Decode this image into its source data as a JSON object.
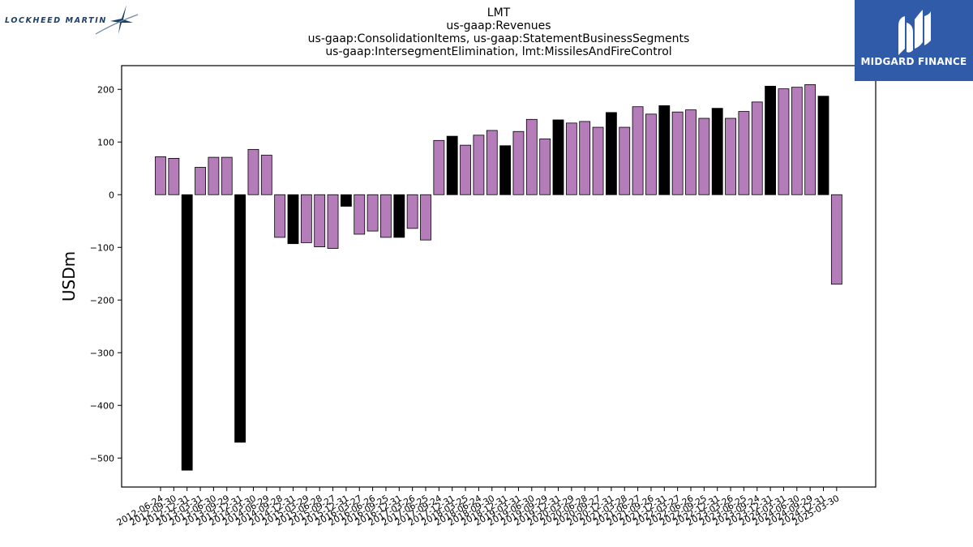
{
  "logos": {
    "left_text": "LOCKHEED MARTIN",
    "left_icon": "star-swoosh-icon",
    "right_text": "MIDGARD FINANCE",
    "right_icon": "midgard-monogram-icon",
    "right_bg": "#2f5ba8"
  },
  "chart_data": {
    "type": "bar",
    "title_lines": [
      "LMT",
      "us-gaap:Revenues",
      "us-gaap:ConsolidationItems, us-gaap:StatementBusinessSegments",
      "us-gaap:IntersegmentElimination, lmt:MissilesAndFireControl"
    ],
    "xlabel": "",
    "ylabel": "USDm",
    "ylim": [
      -555,
      245
    ],
    "yticks": [
      200,
      100,
      0,
      -100,
      -200,
      -300,
      -400,
      -500
    ],
    "grid": false,
    "colors": {
      "quarter": "#b57cba",
      "annual": "#000000",
      "edge": "#000000"
    },
    "categories": [
      "2012-06-24",
      "2012-09-30",
      "2012-12-31",
      "2013-03-31",
      "2013-06-30",
      "2013-09-29",
      "2013-12-31",
      "2014-03-30",
      "2014-06-29",
      "2014-09-28",
      "2014-12-31",
      "2015-03-29",
      "2015-06-28",
      "2015-09-27",
      "2015-12-31",
      "2016-03-27",
      "2016-06-26",
      "2016-09-25",
      "2016-12-31",
      "2017-03-26",
      "2017-06-25",
      "2017-09-24",
      "2017-12-31",
      "2018-03-25",
      "2018-06-24",
      "2018-09-30",
      "2018-12-31",
      "2019-03-31",
      "2019-06-30",
      "2019-09-29",
      "2019-12-31",
      "2020-03-29",
      "2020-06-28",
      "2020-09-27",
      "2020-12-31",
      "2021-03-28",
      "2021-06-27",
      "2021-09-26",
      "2021-12-31",
      "2022-03-27",
      "2022-06-26",
      "2022-09-25",
      "2022-12-31",
      "2023-03-26",
      "2023-06-25",
      "2023-09-24",
      "2023-12-31",
      "2024-03-31",
      "2024-06-30",
      "2024-09-29",
      "2024-12-31",
      "2025-03-30"
    ],
    "x_tick_labels": [
      "2012-06-24",
      "2012-09-30",
      "2012-12-31",
      "2013-03-31",
      "2013-06-30",
      "2013-09-29",
      "2013-12-31",
      "2014-03-30",
      "2014-06-29",
      "2014-09-28",
      "2014-12-31",
      "2015-03-29",
      "2015-06-28",
      "2015-09-27",
      "2015-12-31",
      "2016-03-27",
      "2016-06-26",
      "2016-09-25",
      "2016-12-31",
      "2017-03-26",
      "2017-06-25",
      "2017-09-24",
      "2017-12-31",
      "2018-03-25",
      "2018-06-24",
      "2018-09-30",
      "2018-12-31",
      "2019-03-31",
      "2019-06-30",
      "2019-09-29",
      "2019-12-31",
      "2020-03-29",
      "2020-06-28",
      "2020-09-27",
      "2020-12-31",
      "2021-03-28",
      "2021-06-27",
      "2021-09-26",
      "2021-12-31",
      "2022-03-27",
      "2022-06-26",
      "2022-09-25",
      "2022-12-31",
      "2023-03-26",
      "2023-06-25",
      "2023-09-24",
      "2023-12-31",
      "2024-03-31",
      "2024-06-30",
      "2024-09-29",
      "2024-12-31",
      "2025-03-30"
    ],
    "values": [
      72,
      69,
      -523,
      52,
      71,
      71,
      -470,
      86,
      75,
      -81,
      -93,
      -91,
      -99,
      -102,
      -22,
      -75,
      -69,
      -81,
      -81,
      -64,
      -86,
      103,
      111,
      94,
      113,
      122,
      93,
      120,
      143,
      106,
      142,
      136,
      139,
      128,
      156,
      128,
      167,
      153,
      169,
      157,
      161,
      145,
      164,
      145,
      158,
      176,
      206,
      201,
      204,
      209,
      187,
      -170
    ],
    "series_kind": [
      "q",
      "q",
      "a",
      "q",
      "q",
      "q",
      "a",
      "q",
      "q",
      "q",
      "a",
      "q",
      "q",
      "q",
      "a",
      "q",
      "q",
      "q",
      "a",
      "q",
      "q",
      "q",
      "a",
      "q",
      "q",
      "q",
      "a",
      "q",
      "q",
      "q",
      "a",
      "q",
      "q",
      "q",
      "a",
      "q",
      "q",
      "q",
      "a",
      "q",
      "q",
      "q",
      "a",
      "q",
      "q",
      "q",
      "a",
      "q",
      "q",
      "q",
      "a",
      "q"
    ]
  }
}
